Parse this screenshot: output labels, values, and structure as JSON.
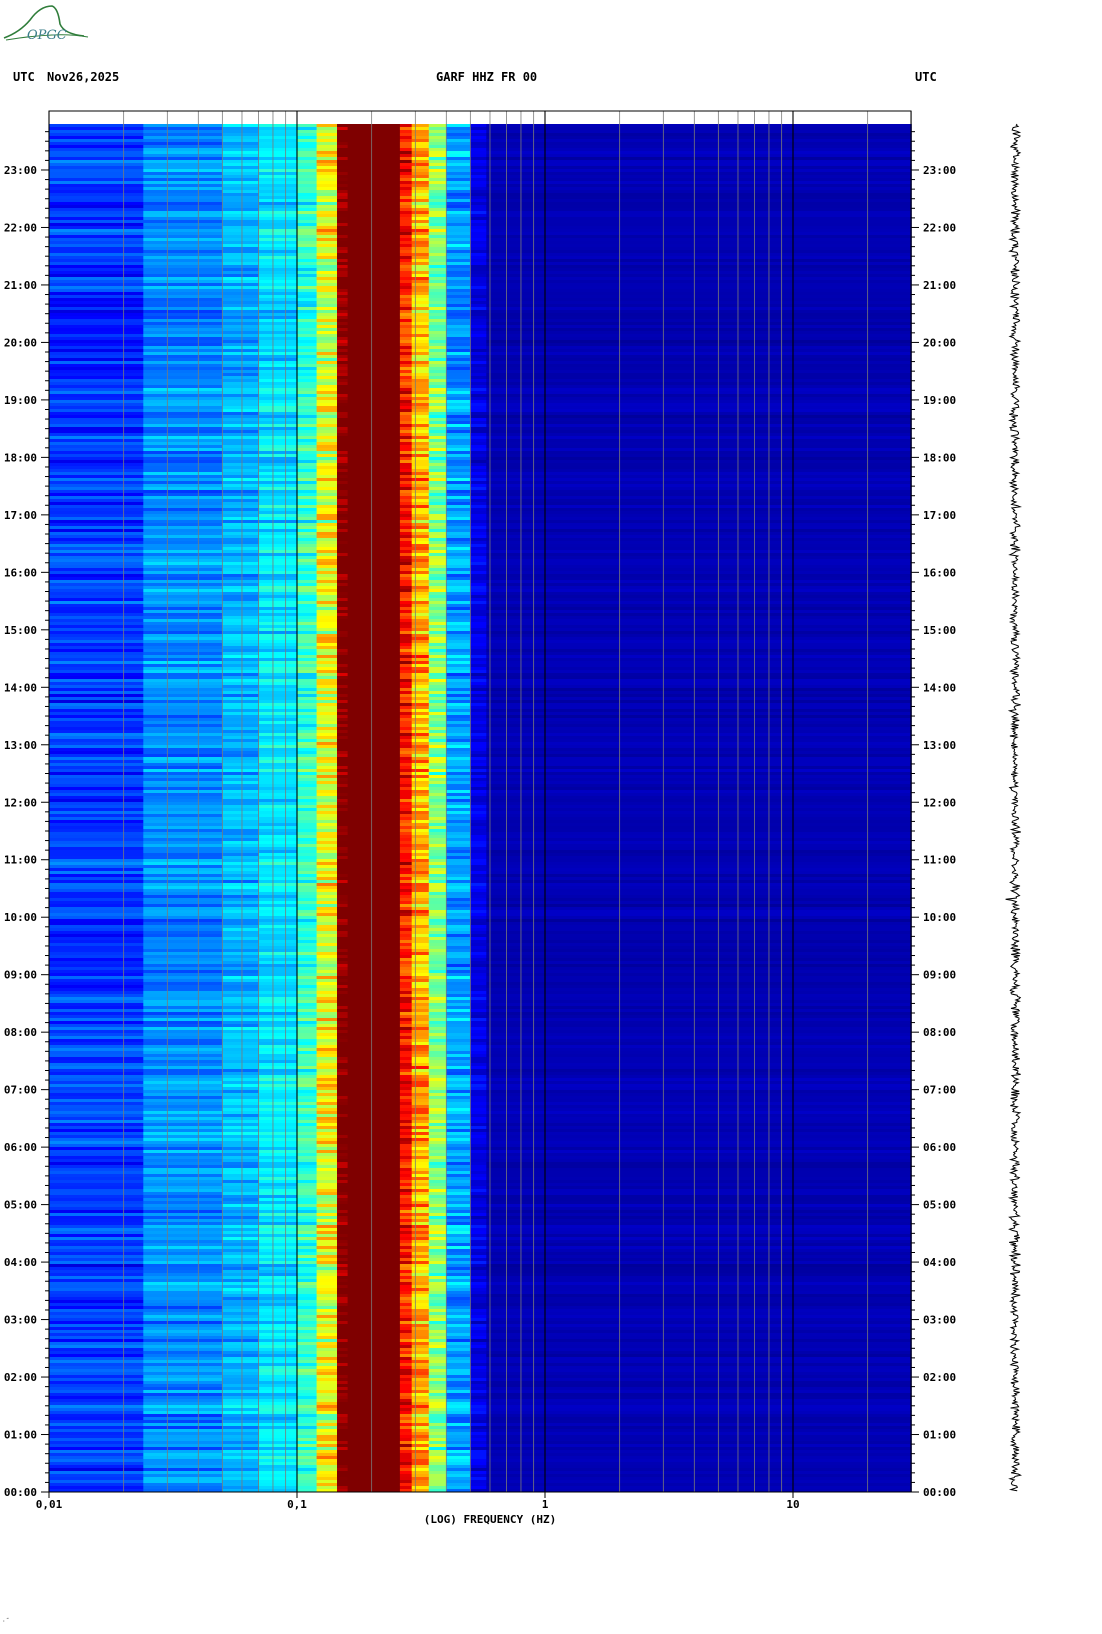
{
  "header": {
    "left_tz": "UTC",
    "date": "Nov26,2025",
    "station": "GARF HHZ FR 00",
    "right_tz": "UTC"
  },
  "logo": {
    "text": "OPGC",
    "color": "#2f7d3a"
  },
  "footer_mark": "·˝",
  "chart_data": {
    "type": "heatmap",
    "title": "GARF HHZ FR 00",
    "xlabel": "(LOG) FREQUENCY (HZ)",
    "ylabel": "UTC",
    "x_scale": "log",
    "xlim": [
      0.01,
      30
    ],
    "x_ticks": [
      {
        "value": 0.01,
        "label": "0,01"
      },
      {
        "value": 0.1,
        "label": "0,1"
      },
      {
        "value": 1,
        "label": "1"
      },
      {
        "value": 10,
        "label": "10"
      }
    ],
    "ylim_hours": [
      0,
      24
    ],
    "y_ticks": [
      {
        "hour": 0,
        "label": "00:00"
      },
      {
        "hour": 1,
        "label": "01:00"
      },
      {
        "hour": 2,
        "label": "02:00"
      },
      {
        "hour": 3,
        "label": "03:00"
      },
      {
        "hour": 4,
        "label": "04:00"
      },
      {
        "hour": 5,
        "label": "05:00"
      },
      {
        "hour": 6,
        "label": "06:00"
      },
      {
        "hour": 7,
        "label": "07:00"
      },
      {
        "hour": 8,
        "label": "08:00"
      },
      {
        "hour": 9,
        "label": "09:00"
      },
      {
        "hour": 10,
        "label": "10:00"
      },
      {
        "hour": 11,
        "label": "11:00"
      },
      {
        "hour": 12,
        "label": "12:00"
      },
      {
        "hour": 13,
        "label": "13:00"
      },
      {
        "hour": 14,
        "label": "14:00"
      },
      {
        "hour": 15,
        "label": "15:00"
      },
      {
        "hour": 16,
        "label": "16:00"
      },
      {
        "hour": 17,
        "label": "17:00"
      },
      {
        "hour": 18,
        "label": "18:00"
      },
      {
        "hour": 19,
        "label": "19:00"
      },
      {
        "hour": 20,
        "label": "20:00"
      },
      {
        "hour": 21,
        "label": "21:00"
      },
      {
        "hour": 22,
        "label": "22:00"
      },
      {
        "hour": 23,
        "label": "23:00"
      }
    ],
    "data_end_hour": 23.8,
    "frequency_bands_hz": [
      0.01,
      0.024,
      0.05,
      0.07,
      0.1,
      0.12,
      0.145,
      0.16,
      0.26,
      0.29,
      0.34,
      0.4,
      0.5,
      0.58,
      30
    ],
    "band_levels": [
      0.18,
      0.26,
      0.3,
      0.35,
      0.42,
      0.6,
      1.0,
      1.0,
      0.85,
      0.7,
      0.5,
      0.28,
      0.1,
      0.05
    ],
    "band_variability": [
      0.08,
      0.08,
      0.08,
      0.08,
      0.1,
      0.15,
      0.08,
      0.0,
      0.12,
      0.14,
      0.12,
      0.1,
      0.05,
      0.02
    ],
    "colormap": [
      "#00007f",
      "#0000ff",
      "#0080ff",
      "#00ffff",
      "#80ff80",
      "#ffff00",
      "#ff8000",
      "#ff0000",
      "#7f0000"
    ],
    "grid": true,
    "trace_color": "#000000"
  }
}
